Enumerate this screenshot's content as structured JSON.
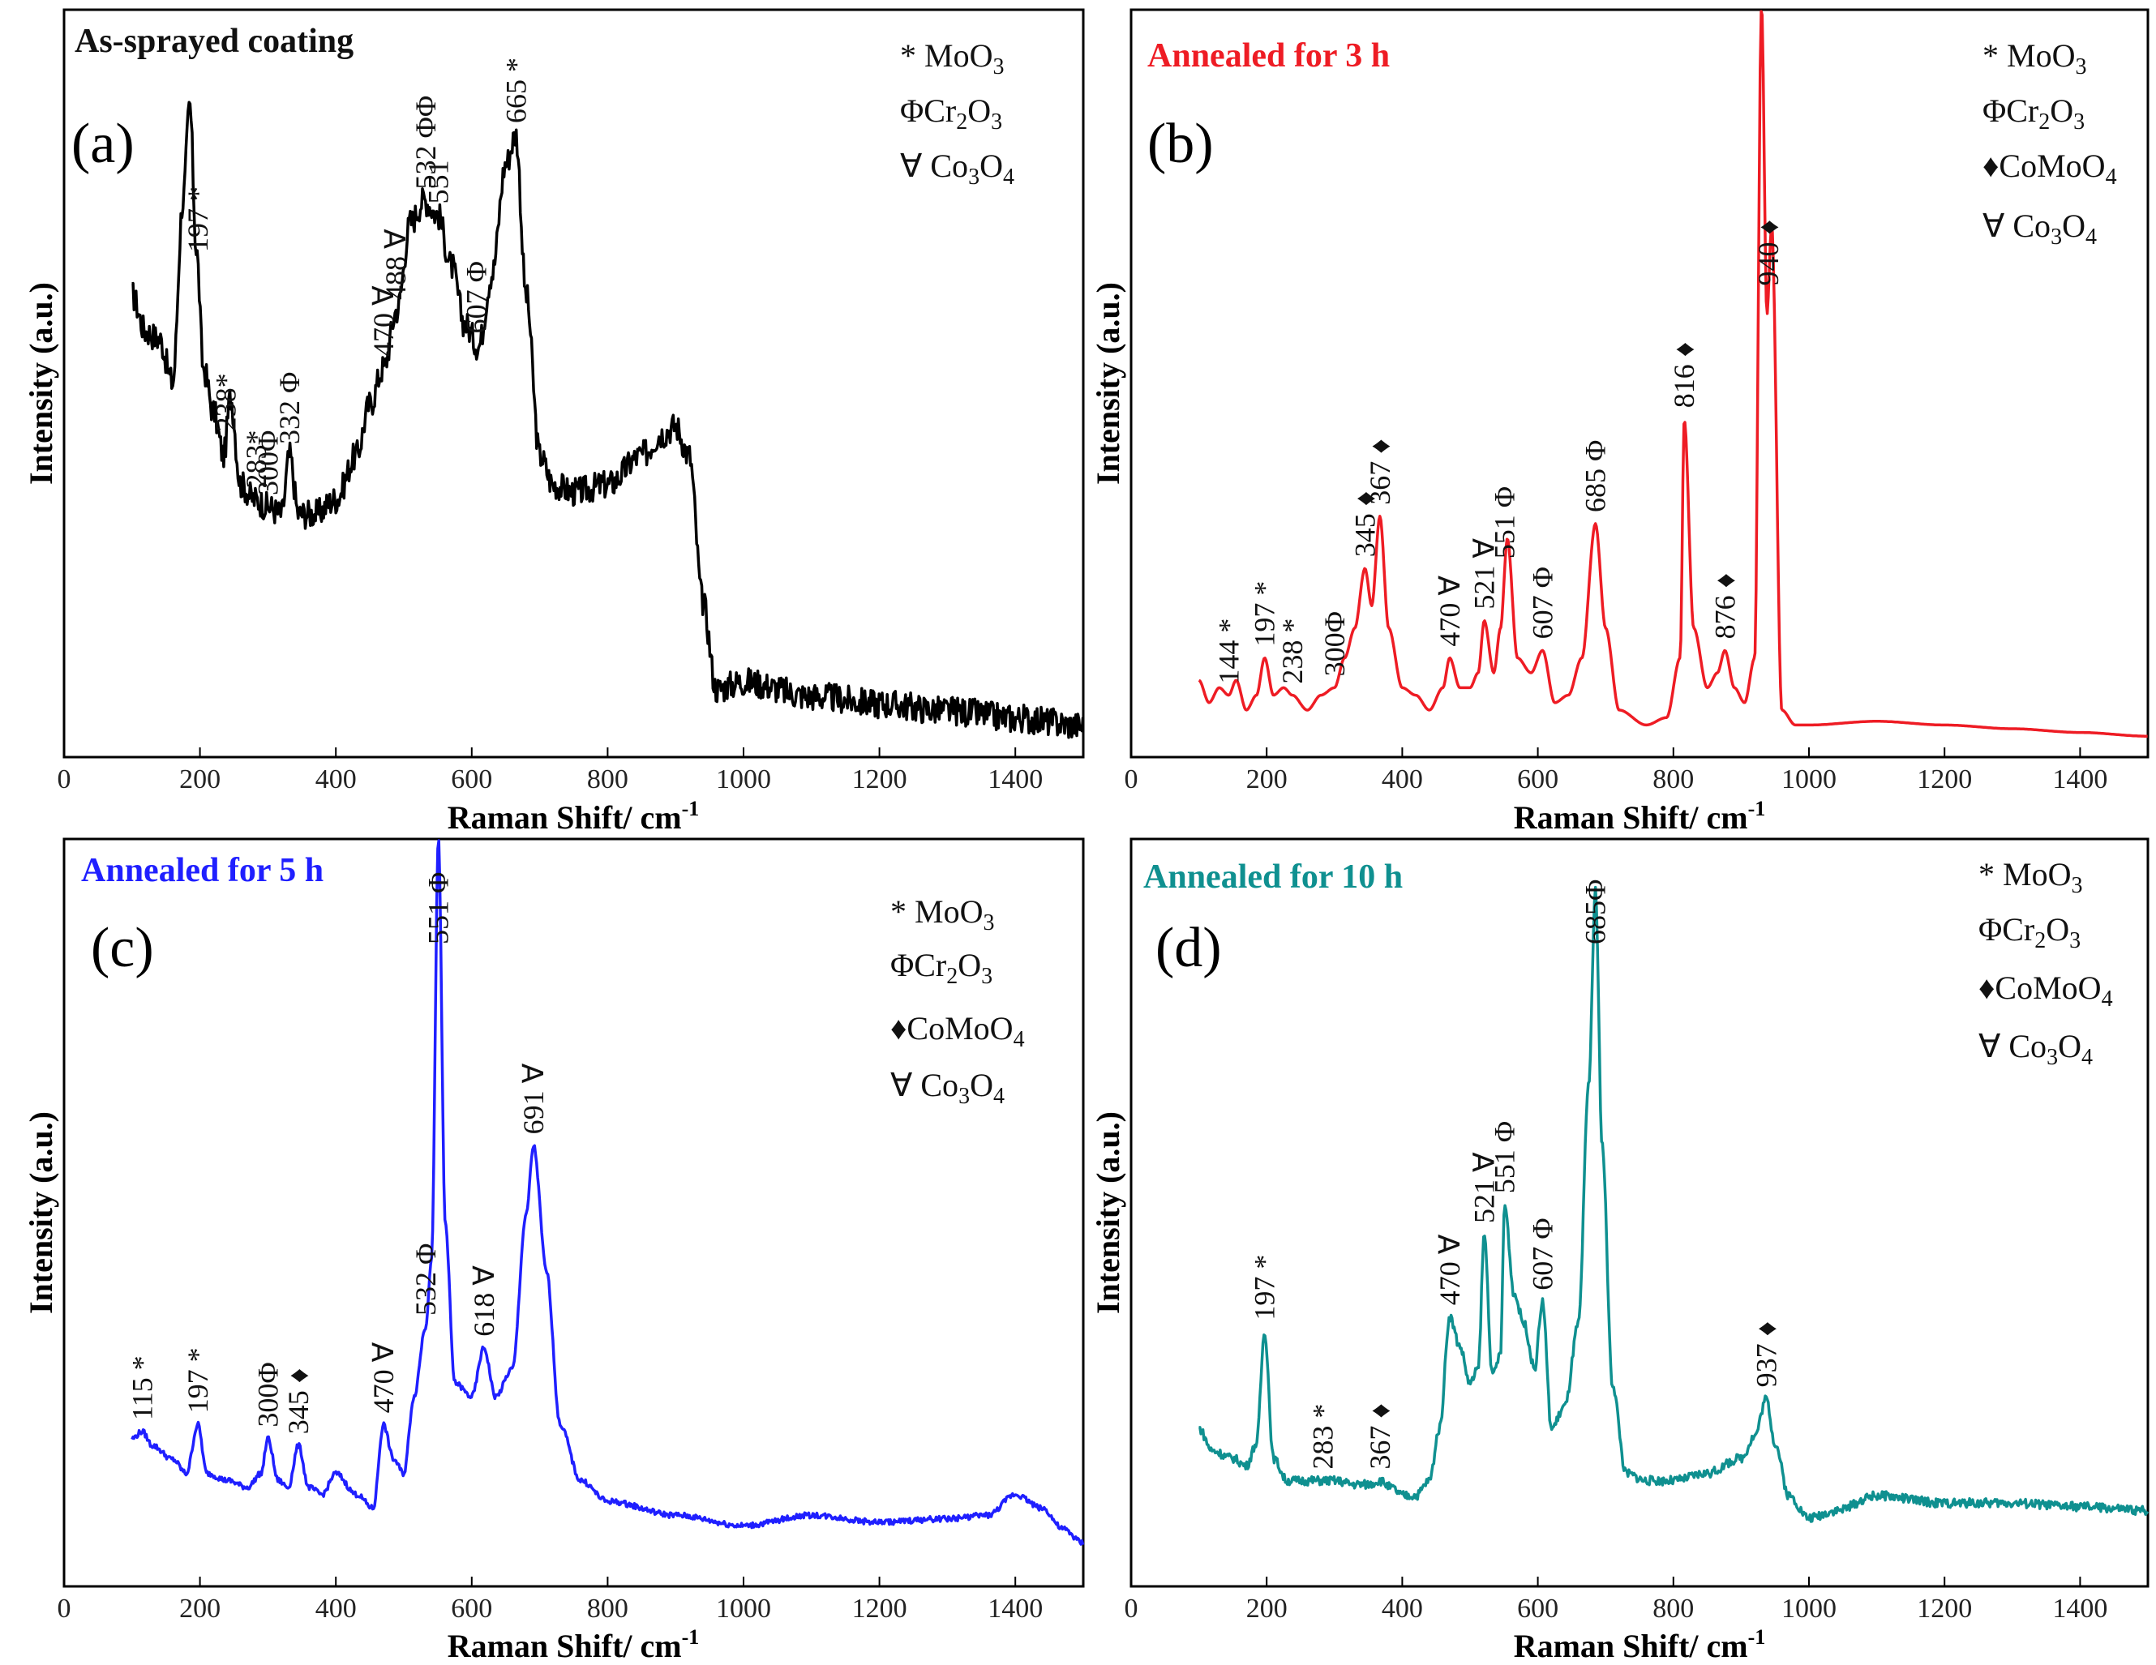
{
  "figure": {
    "xlabel": "Raman Shift/ cm",
    "xlabel_sup": "-1",
    "ylabel": "Intensity (a.u.)"
  },
  "legend_items": {
    "moo3": {
      "sym": "*",
      "name": "MoO",
      "sub": "3",
      "label": "* MoO3"
    },
    "cr2o3": {
      "sym": "Φ",
      "name": "Cr",
      "sub1": "2",
      "mid": "O",
      "sub": "3",
      "label": "ΦCr2O3"
    },
    "comoo4": {
      "sym": "♦",
      "name": "CoMoO",
      "sub": "4",
      "label": "♦CoMoO4"
    },
    "co3o4": {
      "sym": "∀",
      "name": "Co",
      "sub1": "3",
      "mid": "O",
      "sub": "4",
      "label": "∀ Co3O4"
    }
  },
  "chart_data": [
    {
      "type": "line",
      "panel": "(a)",
      "title": "As-sprayed coating",
      "color": "#000000",
      "xlim": [
        0,
        1500
      ],
      "xticks": [
        0,
        200,
        400,
        600,
        800,
        1000,
        1200,
        1400
      ],
      "ylim": [
        0,
        100
      ],
      "xlabel": "Raman Shift/ cm-1",
      "ylabel": "Intensity (a.u.)",
      "legend": [
        "* MoO3",
        "ΦCr2O3",
        "∀ Co3O4"
      ],
      "noise": 2.0,
      "series": [
        {
          "name": "As-sprayed coating",
          "x": [
            100,
            120,
            140,
            160,
            175,
            185,
            195,
            205,
            220,
            235,
            245,
            260,
            280,
            300,
            320,
            332,
            345,
            370,
            400,
            430,
            450,
            470,
            490,
            510,
            530,
            550,
            570,
            590,
            610,
            630,
            650,
            665,
            680,
            700,
            720,
            750,
            800,
            850,
            880,
            900,
            920,
            940,
            960,
            1000,
            1100,
            1200,
            1300,
            1400,
            1500
          ],
          "y": [
            62,
            57,
            56,
            50,
            75,
            88,
            68,
            52,
            46,
            40,
            48,
            36,
            34,
            33,
            32,
            40,
            32,
            32,
            34,
            40,
            47,
            52,
            60,
            72,
            75,
            73,
            66,
            58,
            55,
            65,
            80,
            84,
            62,
            40,
            36,
            35,
            36,
            40,
            43,
            44,
            40,
            20,
            8,
            9,
            7,
            6,
            5,
            4,
            3
          ]
        }
      ],
      "peaks": [
        {
          "x": 197,
          "label": "197 *"
        },
        {
          "x": 238,
          "label": "238*"
        },
        {
          "x": 283,
          "label": "283*"
        },
        {
          "x": 300,
          "label": "300Φ"
        },
        {
          "x": 332,
          "label": "332 Φ"
        },
        {
          "x": 470,
          "label": "470 ∀"
        },
        {
          "x": 488,
          "label": "488 ∀"
        },
        {
          "x": 532,
          "label": "532 ΦΦ"
        },
        {
          "x": 551,
          "label": "551"
        },
        {
          "x": 607,
          "label": "607 Φ"
        },
        {
          "x": 665,
          "label": "665 *"
        }
      ]
    },
    {
      "type": "line",
      "panel": "(b)",
      "title": "Annealed for 3 h",
      "color": "#ee1c24",
      "xlim": [
        0,
        1500
      ],
      "xticks": [
        0,
        200,
        400,
        600,
        800,
        1000,
        1200,
        1400
      ],
      "ylim": [
        0,
        100
      ],
      "xlabel": "Raman Shift/ cm-1",
      "ylabel": "Intensity (a.u.)",
      "legend": [
        "* MoO3",
        "ΦCr2O3",
        "♦CoMoO4",
        "∀ Co3O4"
      ],
      "noise": 0,
      "series": [
        {
          "name": "Annealed for 3 h",
          "x": [
            100,
            115,
            130,
            144,
            155,
            170,
            185,
            197,
            210,
            225,
            238,
            260,
            280,
            300,
            315,
            330,
            345,
            355,
            367,
            380,
            400,
            420,
            440,
            460,
            470,
            485,
            500,
            512,
            521,
            535,
            545,
            555,
            570,
            590,
            607,
            625,
            645,
            665,
            685,
            700,
            720,
            760,
            790,
            810,
            816,
            830,
            850,
            865,
            876,
            890,
            905,
            920,
            930,
            938,
            945,
            960,
            980,
            1000,
            1100,
            1200,
            1300,
            1400,
            1500
          ],
          "y": [
            9,
            6,
            8,
            7,
            9,
            5,
            7,
            12,
            7,
            8,
            7,
            5,
            7,
            8,
            12,
            16,
            24,
            19,
            31,
            16,
            8,
            7,
            5,
            8,
            12,
            8,
            8,
            10,
            17,
            10,
            16,
            28,
            12,
            10,
            13,
            6,
            7,
            12,
            30,
            16,
            5,
            3,
            4,
            12,
            44,
            16,
            8,
            10,
            13,
            8,
            6,
            12,
            100,
            58,
            70,
            5,
            3,
            3,
            3.5,
            3,
            2.5,
            2,
            1.5
          ]
        }
      ],
      "peaks": [
        {
          "x": 144,
          "label": "144 *"
        },
        {
          "x": 197,
          "label": "197 *"
        },
        {
          "x": 238,
          "label": "238 *"
        },
        {
          "x": 300,
          "label": "300Φ"
        },
        {
          "x": 345,
          "label": "345 ♦"
        },
        {
          "x": 367,
          "label": "367 ♦"
        },
        {
          "x": 470,
          "label": "470 ∀"
        },
        {
          "x": 521,
          "label": "521 ∀"
        },
        {
          "x": 551,
          "label": "551 Φ"
        },
        {
          "x": 607,
          "label": "607 Φ"
        },
        {
          "x": 685,
          "label": "685 Φ"
        },
        {
          "x": 816,
          "label": "816 ♦"
        },
        {
          "x": 876,
          "label": "876 ♦"
        },
        {
          "x": 940,
          "label": "940 ♦"
        }
      ]
    },
    {
      "type": "line",
      "panel": "(c)",
      "title": "Annealed for 5 h",
      "color": "#1f1fff",
      "xlim": [
        0,
        1500
      ],
      "xticks": [
        0,
        200,
        400,
        600,
        800,
        1000,
        1200,
        1400
      ],
      "ylim": [
        0,
        100
      ],
      "xlabel": "Raman Shift/ cm-1",
      "ylabel": "Intensity (a.u.)",
      "legend": [
        "* MoO3",
        "ΦCr2O3",
        "♦CoMoO4",
        "∀ Co3O4"
      ],
      "noise": 0.4,
      "series": [
        {
          "name": "Annealed for 5 h",
          "x": [
            100,
            115,
            130,
            160,
            180,
            197,
            210,
            240,
            270,
            290,
            300,
            315,
            330,
            345,
            360,
            380,
            400,
            430,
            455,
            470,
            485,
            500,
            515,
            532,
            541,
            551,
            561,
            575,
            600,
            618,
            635,
            660,
            680,
            691,
            710,
            730,
            760,
            800,
            900,
            1000,
            1100,
            1200,
            1300,
            1360,
            1400,
            1440,
            1470,
            1500
          ],
          "y": [
            14,
            15,
            13,
            11,
            9,
            16,
            9,
            8,
            7,
            9,
            14,
            8,
            7,
            13,
            7,
            6,
            9,
            6,
            4,
            16,
            11,
            9,
            20,
            30,
            40,
            100,
            45,
            22,
            20,
            27,
            20,
            24,
            46,
            56,
            38,
            16,
            8,
            5,
            3,
            1.5,
            3,
            2,
            2.5,
            3,
            6,
            4,
            1,
            -1
          ]
        }
      ],
      "peaks": [
        {
          "x": 115,
          "label": "115 *"
        },
        {
          "x": 197,
          "label": "197 *"
        },
        {
          "x": 300,
          "label": "300Φ"
        },
        {
          "x": 345,
          "label": "345 ♦"
        },
        {
          "x": 470,
          "label": "470 ∀"
        },
        {
          "x": 532,
          "label": "532 Φ"
        },
        {
          "x": 551,
          "label": "551 Φ"
        },
        {
          "x": 618,
          "label": "618 ∀"
        },
        {
          "x": 691,
          "label": "691 ∀"
        }
      ]
    },
    {
      "type": "line",
      "panel": "(d)",
      "title": "Annealed for 10 h",
      "color": "#0f9090",
      "xlim": [
        0,
        1500
      ],
      "xticks": [
        0,
        200,
        400,
        600,
        800,
        1000,
        1200,
        1400
      ],
      "ylim": [
        0,
        100
      ],
      "xlabel": "Raman Shift/ cm-1",
      "ylabel": "Intensity (a.u.)",
      "legend": [
        "* MoO3",
        "ΦCr2O3",
        "♦CoMoO4",
        "∀ Co3O4"
      ],
      "noise": 0.6,
      "series": [
        {
          "name": "Annealed for 10 h",
          "x": [
            100,
            120,
            150,
            170,
            185,
            197,
            210,
            230,
            260,
            283,
            300,
            330,
            350,
            367,
            385,
            400,
            420,
            440,
            455,
            470,
            485,
            500,
            512,
            521,
            533,
            545,
            551,
            565,
            580,
            595,
            607,
            620,
            640,
            660,
            675,
            685,
            695,
            710,
            730,
            760,
            800,
            850,
            900,
            920,
            937,
            950,
            970,
            1000,
            1040,
            1100,
            1200,
            1300,
            1400,
            1500
          ],
          "y": [
            14,
            11,
            10,
            9,
            12,
            27,
            10,
            7,
            7,
            7,
            7,
            6.5,
            6.5,
            7,
            6,
            5,
            5,
            7,
            14,
            29,
            25,
            20,
            22,
            40,
            21,
            24,
            44,
            32,
            28,
            22,
            31,
            14,
            17,
            28,
            60,
            86,
            52,
            20,
            8,
            7,
            7,
            8,
            10,
            13,
            18,
            12,
            5,
            2,
            3,
            5,
            4,
            4,
            3.5,
            3
          ]
        }
      ],
      "peaks": [
        {
          "x": 197,
          "label": "197 *"
        },
        {
          "x": 283,
          "label": "283 *"
        },
        {
          "x": 367,
          "label": "367 ♦"
        },
        {
          "x": 470,
          "label": "470 ∀"
        },
        {
          "x": 521,
          "label": "521 ∀"
        },
        {
          "x": 551,
          "label": "551 Φ"
        },
        {
          "x": 607,
          "label": "607 Φ"
        },
        {
          "x": 685,
          "label": "685Φ"
        },
        {
          "x": 937,
          "label": "937 ♦"
        }
      ]
    }
  ]
}
